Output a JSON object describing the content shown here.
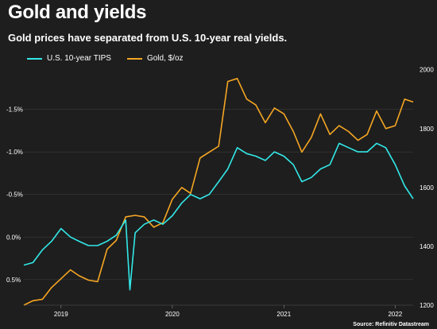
{
  "header": {
    "title": "Gold and yields",
    "subtitle": "Gold prices have separated from U.S. 10-year real yields."
  },
  "source": "Source: Refinitiv Datastream",
  "colors": {
    "tips": "#33e8e8",
    "gold": "#f5a623",
    "background": "#1e1e1e",
    "grid": "#3a3a3a"
  },
  "chart_data": {
    "type": "line",
    "x_ticks": [
      "2019",
      "2020",
      "2021",
      "2022"
    ],
    "left_axis": {
      "ticks": [
        "-1.5%",
        "-1.0%",
        "-0.5%",
        "0.0%",
        "0.5%"
      ],
      "tick_values": [
        -1.5,
        -1.0,
        -0.5,
        0.0,
        0.5
      ],
      "range": [
        -2.0,
        0.8
      ],
      "inverted": true
    },
    "right_axis": {
      "ticks": [
        "2000",
        "1800",
        "1600",
        "1400",
        "1200"
      ],
      "tick_values": [
        2000,
        1800,
        1600,
        1400,
        1200
      ],
      "range": [
        1200,
        2010
      ]
    },
    "x_range": [
      "2018-09",
      "2022-03"
    ],
    "grid": "horizontal",
    "legend_position": "top-left",
    "series": [
      {
        "name": "U.S. 10-year TIPS",
        "axis": "left",
        "x": [
          "2018-09",
          "2018-10",
          "2018-11",
          "2018-12",
          "2019-01",
          "2019-02",
          "2019-03",
          "2019-04",
          "2019-05",
          "2019-06",
          "2019-07",
          "2019-08",
          "2019-08-15",
          "2019-09",
          "2019-10",
          "2019-11",
          "2019-12",
          "2020-01",
          "2020-02",
          "2020-03",
          "2020-04",
          "2020-05",
          "2020-06",
          "2020-07",
          "2020-08",
          "2020-09",
          "2020-10",
          "2020-11",
          "2020-12",
          "2021-01",
          "2021-02",
          "2021-03",
          "2021-04",
          "2021-05",
          "2021-06",
          "2021-07",
          "2021-08",
          "2021-09",
          "2021-10",
          "2021-11",
          "2021-12",
          "2022-01",
          "2022-02",
          "2022-03"
        ],
        "values": [
          0.33,
          0.3,
          0.15,
          0.05,
          -0.1,
          0.0,
          0.05,
          0.1,
          0.1,
          0.05,
          -0.02,
          -0.2,
          0.62,
          -0.05,
          -0.15,
          -0.2,
          -0.15,
          -0.25,
          -0.4,
          -0.5,
          -0.45,
          -0.5,
          -0.65,
          -0.8,
          -1.05,
          -0.98,
          -0.95,
          -0.9,
          -1.0,
          -0.95,
          -0.85,
          -0.65,
          -0.7,
          -0.8,
          -0.85,
          -1.1,
          -1.05,
          -1.0,
          -1.0,
          -1.1,
          -1.05,
          -0.85,
          -0.6,
          -0.45
        ]
      },
      {
        "name": "Gold, $/oz",
        "axis": "right",
        "x": [
          "2018-09",
          "2018-10",
          "2018-11",
          "2018-12",
          "2019-01",
          "2019-02",
          "2019-03",
          "2019-04",
          "2019-05",
          "2019-06",
          "2019-07",
          "2019-08",
          "2019-09",
          "2019-10",
          "2019-11",
          "2019-12",
          "2020-01",
          "2020-02",
          "2020-03",
          "2020-04",
          "2020-05",
          "2020-06",
          "2020-07",
          "2020-08",
          "2020-09",
          "2020-10",
          "2020-11",
          "2020-12",
          "2021-01",
          "2021-02",
          "2021-03",
          "2021-04",
          "2021-05",
          "2021-06",
          "2021-07",
          "2021-08",
          "2021-09",
          "2021-10",
          "2021-11",
          "2021-12",
          "2022-01",
          "2022-02",
          "2022-03"
        ],
        "values": [
          1200,
          1215,
          1220,
          1260,
          1290,
          1320,
          1300,
          1285,
          1280,
          1390,
          1420,
          1500,
          1505,
          1500,
          1465,
          1480,
          1560,
          1600,
          1580,
          1700,
          1720,
          1740,
          1960,
          1970,
          1900,
          1880,
          1820,
          1870,
          1850,
          1790,
          1720,
          1770,
          1850,
          1780,
          1810,
          1790,
          1760,
          1780,
          1860,
          1800,
          1810,
          1900,
          1890
        ]
      }
    ]
  }
}
